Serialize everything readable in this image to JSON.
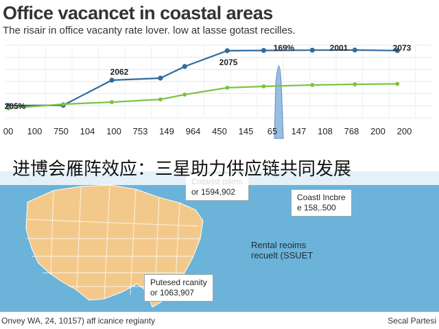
{
  "title": "Office vacancet in coastal areas",
  "subtitle": "The risair in office vacanty rate lover. low at lasse gotast recilles.",
  "colors": {
    "series_blue": "#2e6b9e",
    "series_green": "#7cc242",
    "highlight_band": "#8fb8e0",
    "map_background": "#6bb3d8",
    "map_land": "#f3c98b"
  },
  "chart_data": {
    "type": "line",
    "x_tick_labels": [
      "00",
      "100",
      "750",
      "104",
      "100",
      "753",
      "149",
      "964",
      "450",
      "145",
      "65",
      "147",
      "108",
      "768",
      "200",
      "200"
    ],
    "highlighted_tick": "65",
    "series": [
      {
        "color": "#2e6b9e",
        "x": [
          0.5,
          9.5,
          17.5,
          25.5,
          29.5,
          36.5,
          42.5,
          50.5,
          57.5,
          64.5
        ],
        "y": [
          34,
          34.2,
          52.5,
          54,
          62.5,
          74,
          74.2,
          74.4,
          74.5,
          74.1
        ]
      },
      {
        "color": "#7cc242",
        "x": [
          0.5,
          9.5,
          17.5,
          25.5,
          29.5,
          36.5,
          42.5,
          50.5,
          57.5,
          64.5
        ],
        "y": [
          32,
          35,
          36.5,
          38.5,
          42,
          47,
          48,
          49,
          49.5,
          49.8
        ]
      }
    ],
    "data_labels": [
      {
        "text": "205%",
        "x": 0.5,
        "y": 34
      },
      {
        "text": "2062",
        "x": 9.5,
        "y": 52.5
      },
      {
        "text": "2075",
        "x": 18.5,
        "y": 60
      },
      {
        "text": "169%",
        "x": 23.5,
        "y": 74
      },
      {
        "text": "2001",
        "x": 30.5,
        "y": 74.4
      },
      {
        "text": "2073",
        "x": 36,
        "y": 74.2
      }
    ],
    "ylim": [
      25,
      78
    ],
    "grid": true,
    "legend": "none"
  },
  "banner_text": "进博会雁阵效应：三星助力供应链共同发展",
  "map": {
    "callouts": [
      {
        "line1": "Cotarist ciilms",
        "line2": "or 1594,902"
      },
      {
        "line1": "Coastl Incbre",
        "line2": "e 158,.500"
      },
      {
        "line1": "Putesed rcanity",
        "line2": "or 1063,907"
      }
    ],
    "center_label": {
      "line1": "Rental reoims",
      "line2": "recuelt (SSUET"
    }
  },
  "footer": {
    "left": "Onvey WA, 24, 10157) aff icanice regianty",
    "right": "Secal Partesi"
  }
}
